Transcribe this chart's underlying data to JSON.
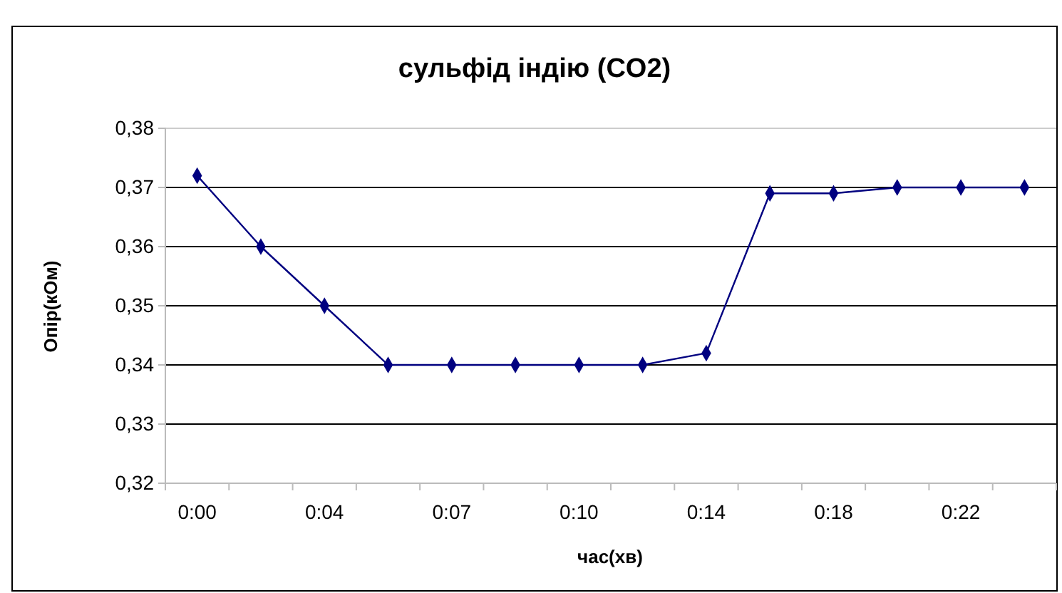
{
  "chart_data": {
    "type": "line",
    "title": "сульфід індію (CO2)",
    "xlabel": "час(хв)",
    "ylabel": "Опір(кОм)",
    "categories": [
      "0:00",
      null,
      "0:04",
      null,
      "0:07",
      null,
      "0:10",
      null,
      "0:14",
      null,
      "0:18",
      null,
      "0:22",
      null
    ],
    "series": [
      {
        "color": "#000080",
        "values": [
          0.372,
          0.36,
          0.35,
          0.34,
          0.34,
          0.34,
          0.34,
          0.34,
          0.342,
          0.369,
          0.369,
          0.37,
          0.37,
          0.37
        ]
      }
    ],
    "ylim": [
      0.32,
      0.38
    ],
    "yticks": [
      {
        "value": 0.32,
        "label": "0,32"
      },
      {
        "value": 0.33,
        "label": "0,33"
      },
      {
        "value": 0.34,
        "label": "0,34"
      },
      {
        "value": 0.35,
        "label": "0,35"
      },
      {
        "value": 0.36,
        "label": "0,36"
      },
      {
        "value": 0.37,
        "label": "0,37"
      },
      {
        "value": 0.38,
        "label": "0,38"
      }
    ],
    "grid": "y",
    "marker": "diamond",
    "line_style": "solid"
  }
}
